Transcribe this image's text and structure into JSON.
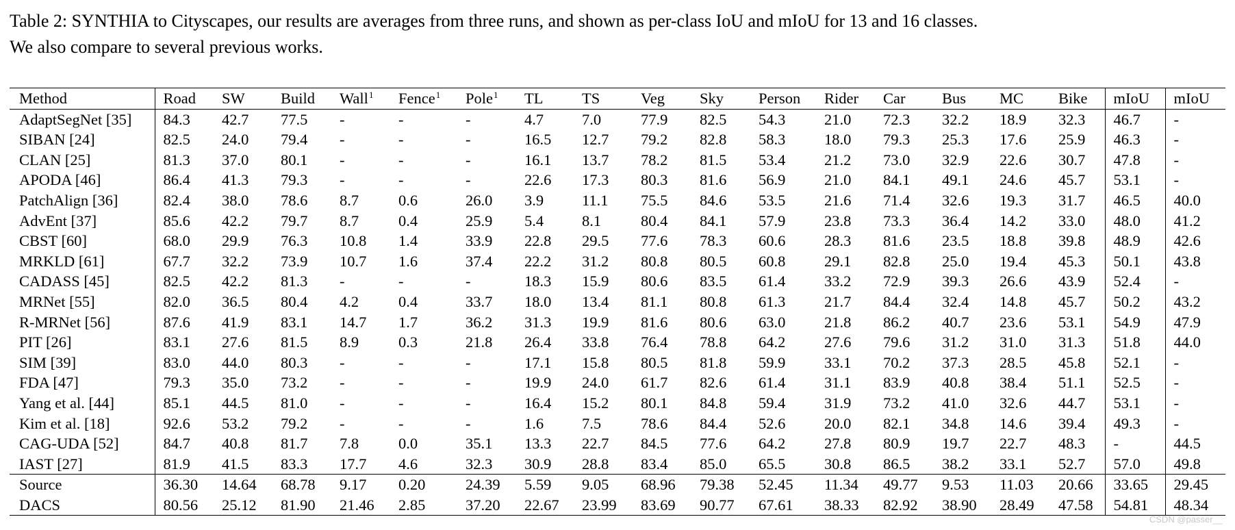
{
  "caption": {
    "line1": "Table 2: SYNTHIA to Cityscapes, our results are averages from three runs, and shown as per-class IoU and mIoU for 13 and 16 classes.",
    "line2": "We also compare to several previous works."
  },
  "header": {
    "columns": [
      "Method",
      "Road",
      "SW",
      "Build",
      "Wall",
      "Fence",
      "Pole",
      "TL",
      "TS",
      "Veg",
      "Sky",
      "Person",
      "Rider",
      "Car",
      "Bus",
      "MC",
      "Bike",
      "mIoU",
      "mIoU"
    ],
    "footnote_mark": "1"
  },
  "rows": [
    {
      "method": "AdaptSegNet [35]",
      "values": [
        "84.3",
        "42.7",
        "77.5",
        "-",
        "-",
        "-",
        "4.7",
        "7.0",
        "77.9",
        "82.5",
        "54.3",
        "21.0",
        "72.3",
        "32.2",
        "18.9",
        "32.3",
        "46.7",
        "-"
      ],
      "bold": []
    },
    {
      "method": "SIBAN [24]",
      "values": [
        "82.5",
        "24.0",
        "79.4",
        "-",
        "-",
        "-",
        "16.5",
        "12.7",
        "79.2",
        "82.8",
        "58.3",
        "18.0",
        "79.3",
        "25.3",
        "17.6",
        "25.9",
        "46.3",
        "-"
      ],
      "bold": []
    },
    {
      "method": "CLAN [25]",
      "values": [
        "81.3",
        "37.0",
        "80.1",
        "-",
        "-",
        "-",
        "16.1",
        "13.7",
        "78.2",
        "81.5",
        "53.4",
        "21.2",
        "73.0",
        "32.9",
        "22.6",
        "30.7",
        "47.8",
        "-"
      ],
      "bold": []
    },
    {
      "method": "APODA [46]",
      "values": [
        "86.4",
        "41.3",
        "79.3",
        "-",
        "-",
        "-",
        "22.6",
        "17.3",
        "80.3",
        "81.6",
        "56.9",
        "21.0",
        "84.1",
        "49.1",
        "24.6",
        "45.7",
        "53.1",
        "-"
      ],
      "bold": [
        13
      ]
    },
    {
      "method": "PatchAlign [36]",
      "values": [
        "82.4",
        "38.0",
        "78.6",
        "8.7",
        "0.6",
        "26.0",
        "3.9",
        "11.1",
        "75.5",
        "84.6",
        "53.5",
        "21.6",
        "71.4",
        "32.6",
        "19.3",
        "31.7",
        "46.5",
        "40.0"
      ],
      "bold": []
    },
    {
      "method": "AdvEnt [37]",
      "values": [
        "85.6",
        "42.2",
        "79.7",
        "8.7",
        "0.4",
        "25.9",
        "5.4",
        "8.1",
        "80.4",
        "84.1",
        "57.9",
        "23.8",
        "73.3",
        "36.4",
        "14.2",
        "33.0",
        "48.0",
        "41.2"
      ],
      "bold": []
    },
    {
      "method": "CBST [60]",
      "values": [
        "68.0",
        "29.9",
        "76.3",
        "10.8",
        "1.4",
        "33.9",
        "22.8",
        "29.5",
        "77.6",
        "78.3",
        "60.6",
        "28.3",
        "81.6",
        "23.5",
        "18.8",
        "39.8",
        "48.9",
        "42.6"
      ],
      "bold": []
    },
    {
      "method": "MRKLD [61]",
      "values": [
        "67.7",
        "32.2",
        "73.9",
        "10.7",
        "1.6",
        "37.4",
        "22.2",
        "31.2",
        "80.8",
        "80.5",
        "60.8",
        "29.1",
        "82.8",
        "25.0",
        "19.4",
        "45.3",
        "50.1",
        "43.8"
      ],
      "bold": [
        5
      ]
    },
    {
      "method": "CADASS [45]",
      "values": [
        "82.5",
        "42.2",
        "81.3",
        "-",
        "-",
        "-",
        "18.3",
        "15.9",
        "80.6",
        "83.5",
        "61.4",
        "33.2",
        "72.9",
        "39.3",
        "26.6",
        "43.9",
        "52.4",
        "-"
      ],
      "bold": []
    },
    {
      "method": "MRNet [55]",
      "values": [
        "82.0",
        "36.5",
        "80.4",
        "4.2",
        "0.4",
        "33.7",
        "18.0",
        "13.4",
        "81.1",
        "80.8",
        "61.3",
        "21.7",
        "84.4",
        "32.4",
        "14.8",
        "45.7",
        "50.2",
        "43.2"
      ],
      "bold": []
    },
    {
      "method": "R-MRNet [56]",
      "values": [
        "87.6",
        "41.9",
        "83.1",
        "14.7",
        "1.7",
        "36.2",
        "31.3",
        "19.9",
        "81.6",
        "80.6",
        "63.0",
        "21.8",
        "86.2",
        "40.7",
        "23.6",
        "53.1",
        "54.9",
        "47.9"
      ],
      "bold": [
        6,
        15
      ]
    },
    {
      "method": "PIT [26]",
      "values": [
        "83.1",
        "27.6",
        "81.5",
        "8.9",
        "0.3",
        "21.8",
        "26.4",
        "33.8",
        "76.4",
        "78.8",
        "64.2",
        "27.6",
        "79.6",
        "31.2",
        "31.0",
        "31.3",
        "51.8",
        "44.0"
      ],
      "bold": [
        7
      ]
    },
    {
      "method": "SIM [39]",
      "values": [
        "83.0",
        "44.0",
        "80.3",
        "-",
        "-",
        "-",
        "17.1",
        "15.8",
        "80.5",
        "81.8",
        "59.9",
        "33.1",
        "70.2",
        "37.3",
        "28.5",
        "45.8",
        "52.1",
        "-"
      ],
      "bold": []
    },
    {
      "method": "FDA [47]",
      "values": [
        "79.3",
        "35.0",
        "73.2",
        "-",
        "-",
        "-",
        "19.9",
        "24.0",
        "61.7",
        "82.6",
        "61.4",
        "31.1",
        "83.9",
        "40.8",
        "38.4",
        "51.1",
        "52.5",
        "-"
      ],
      "bold": [
        14
      ]
    },
    {
      "method": "Yang et al. [44]",
      "values": [
        "85.1",
        "44.5",
        "81.0",
        "-",
        "-",
        "-",
        "16.4",
        "15.2",
        "80.1",
        "84.8",
        "59.4",
        "31.9",
        "73.2",
        "41.0",
        "32.6",
        "44.7",
        "53.1",
        "-"
      ],
      "bold": []
    },
    {
      "method": "Kim et al. [18]",
      "values": [
        "92.6",
        "53.2",
        "79.2",
        "-",
        "-",
        "-",
        "1.6",
        "7.5",
        "78.6",
        "84.4",
        "52.6",
        "20.0",
        "82.1",
        "34.8",
        "14.6",
        "39.4",
        "49.3",
        "-"
      ],
      "bold": [
        0,
        1
      ]
    },
    {
      "method": "CAG-UDA [52]",
      "values": [
        "84.7",
        "40.8",
        "81.7",
        "7.8",
        "0.0",
        "35.1",
        "13.3",
        "22.7",
        "84.5",
        "77.6",
        "64.2",
        "27.8",
        "80.9",
        "19.7",
        "22.7",
        "48.3",
        "-",
        "44.5"
      ],
      "bold": [
        8
      ]
    },
    {
      "method": "IAST [27]",
      "values": [
        "81.9",
        "41.5",
        "83.3",
        "17.7",
        "4.6",
        "32.3",
        "30.9",
        "28.8",
        "83.4",
        "85.0",
        "65.5",
        "30.8",
        "86.5",
        "38.2",
        "33.1",
        "52.7",
        "57.0",
        "49.8"
      ],
      "bold": [
        2,
        4,
        12,
        16,
        17
      ]
    }
  ],
  "ours_rows": [
    {
      "method": "Source",
      "values": [
        "36.30",
        "14.64",
        "68.78",
        "9.17",
        "0.20",
        "24.39",
        "5.59",
        "9.05",
        "68.96",
        "79.38",
        "52.45",
        "11.34",
        "49.77",
        "9.53",
        "11.03",
        "20.66",
        "33.65",
        "29.45"
      ],
      "bold": []
    },
    {
      "method": "DACS",
      "values": [
        "80.56",
        "25.12",
        "81.90",
        "21.46",
        "2.85",
        "37.20",
        "22.67",
        "23.99",
        "83.69",
        "90.77",
        "67.61",
        "38.33",
        "82.92",
        "38.90",
        "28.49",
        "47.58",
        "54.81",
        "48.34"
      ],
      "bold": [
        3,
        9,
        10,
        11
      ]
    }
  ],
  "watermark": "CSDN @passer__"
}
